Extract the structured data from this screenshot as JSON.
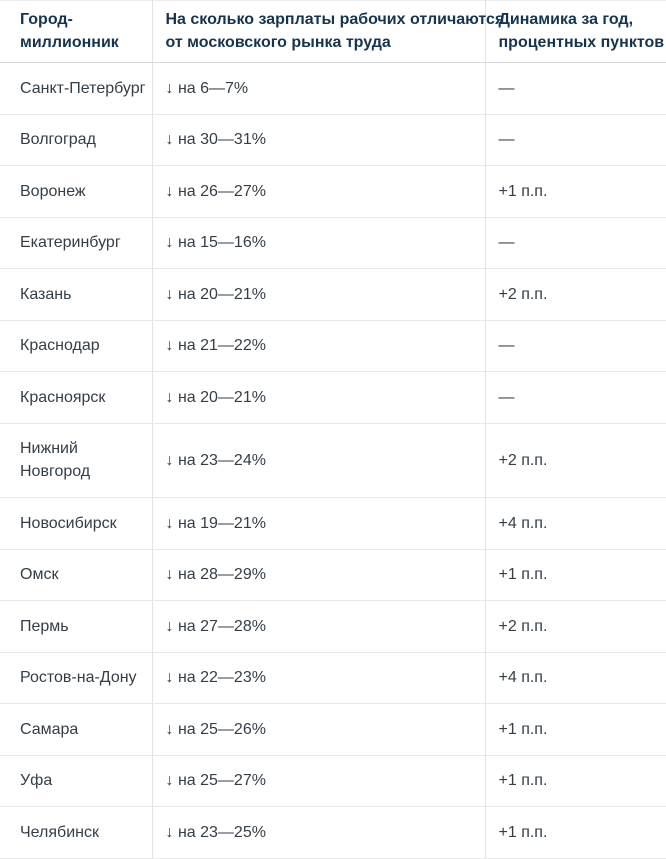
{
  "colors": {
    "header_text": "#153450",
    "body_text": "#333e48",
    "header_rule": "#d9d9d9",
    "row_rule": "#e9e9e9",
    "column_rule": "#e3e3e3",
    "background": "#ffffff"
  },
  "table": {
    "columns": [
      {
        "label": "Город-\nмиллионник"
      },
      {
        "label": "На сколько зарплаты рабочих отличаются\nот московского рынка труда"
      },
      {
        "label": "Динамика за год,\nпроцентных пунктов"
      }
    ],
    "rows": [
      {
        "city": "Санкт-Петербург",
        "diff": "↓ на 6—7%",
        "dynamics": "—"
      },
      {
        "city": "Волгоград",
        "diff": "↓ на 30—31%",
        "dynamics": "—"
      },
      {
        "city": "Воронеж",
        "diff": "↓ на 26—27%",
        "dynamics": "+1 п.п."
      },
      {
        "city": "Екатеринбург",
        "diff": "↓ на 15—16%",
        "dynamics": "—"
      },
      {
        "city": "Казань",
        "diff": "↓ на 20—21%",
        "dynamics": "+2 п.п."
      },
      {
        "city": "Краснодар",
        "diff": "↓ на 21—22%",
        "dynamics": "—"
      },
      {
        "city": "Красноярск",
        "diff": "↓ на 20—21%",
        "dynamics": "—"
      },
      {
        "city": "Нижний\nНовгород",
        "diff": "↓ на 23—24%",
        "dynamics": "+2 п.п."
      },
      {
        "city": "Новосибирск",
        "diff": "↓ на 19—21%",
        "dynamics": "+4 п.п."
      },
      {
        "city": "Омск",
        "diff": "↓ на 28—29%",
        "dynamics": "+1 п.п."
      },
      {
        "city": "Пермь",
        "diff": "↓ на 27—28%",
        "dynamics": "+2 п.п."
      },
      {
        "city": "Ростов-на-Дону",
        "diff": "↓ на 22—23%",
        "dynamics": "+4 п.п."
      },
      {
        "city": "Самара",
        "diff": "↓ на 25—26%",
        "dynamics": "+1 п.п."
      },
      {
        "city": "Уфа",
        "diff": "↓ на 25—27%",
        "dynamics": "+1 п.п."
      },
      {
        "city": "Челябинск",
        "diff": "↓ на 23—25%",
        "dynamics": "+1 п.п."
      }
    ]
  },
  "chart_data": {
    "type": "table",
    "title": "",
    "columns": [
      "Город-миллионник",
      "На сколько зарплаты рабочих отличаются от московского рынка труда",
      "Динамика за год, процентных пунктов"
    ],
    "rows": [
      {
        "city": "Санкт-Петербург",
        "below_moscow_percent": [
          6,
          7
        ],
        "change_yoy_pp": null
      },
      {
        "city": "Волгоград",
        "below_moscow_percent": [
          30,
          31
        ],
        "change_yoy_pp": null
      },
      {
        "city": "Воронеж",
        "below_moscow_percent": [
          26,
          27
        ],
        "change_yoy_pp": 1
      },
      {
        "city": "Екатеринбург",
        "below_moscow_percent": [
          15,
          16
        ],
        "change_yoy_pp": null
      },
      {
        "city": "Казань",
        "below_moscow_percent": [
          20,
          21
        ],
        "change_yoy_pp": 2
      },
      {
        "city": "Краснодар",
        "below_moscow_percent": [
          21,
          22
        ],
        "change_yoy_pp": null
      },
      {
        "city": "Красноярск",
        "below_moscow_percent": [
          20,
          21
        ],
        "change_yoy_pp": null
      },
      {
        "city": "Нижний Новгород",
        "below_moscow_percent": [
          23,
          24
        ],
        "change_yoy_pp": 2
      },
      {
        "city": "Новосибирск",
        "below_moscow_percent": [
          19,
          21
        ],
        "change_yoy_pp": 4
      },
      {
        "city": "Омск",
        "below_moscow_percent": [
          28,
          29
        ],
        "change_yoy_pp": 1
      },
      {
        "city": "Пермь",
        "below_moscow_percent": [
          27,
          28
        ],
        "change_yoy_pp": 2
      },
      {
        "city": "Ростов-на-Дону",
        "below_moscow_percent": [
          22,
          23
        ],
        "change_yoy_pp": 4
      },
      {
        "city": "Самара",
        "below_moscow_percent": [
          25,
          26
        ],
        "change_yoy_pp": 1
      },
      {
        "city": "Уфа",
        "below_moscow_percent": [
          25,
          27
        ],
        "change_yoy_pp": 1
      },
      {
        "city": "Челябинск",
        "below_moscow_percent": [
          23,
          25
        ],
        "change_yoy_pp": 1
      }
    ]
  }
}
